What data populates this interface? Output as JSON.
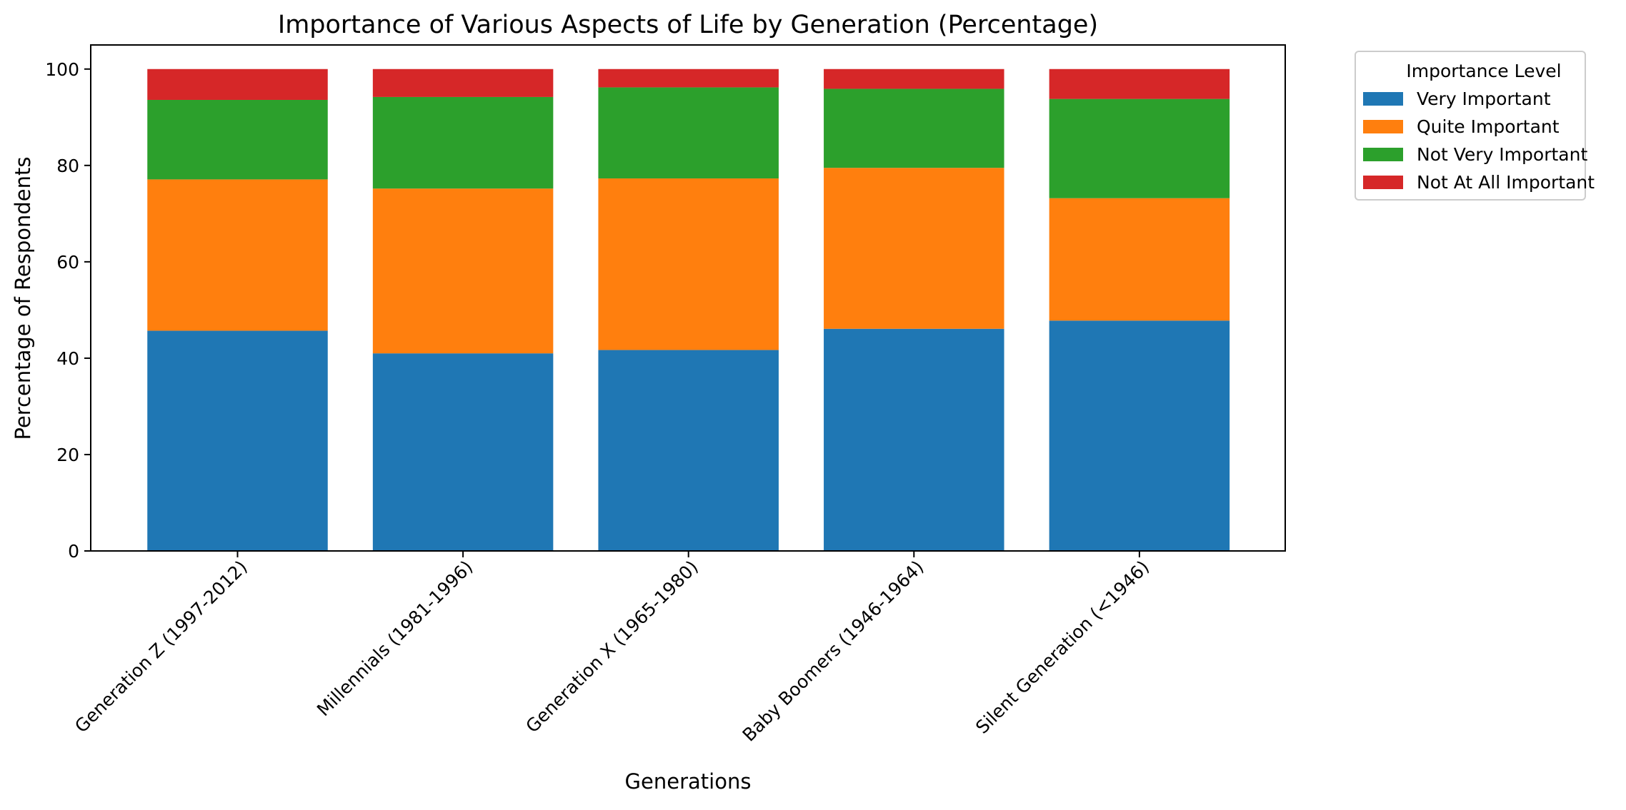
{
  "chart_data": {
    "type": "bar",
    "stacked": true,
    "title": "Importance of Various Aspects of Life by Generation (Percentage)",
    "xlabel": "Generations",
    "ylabel": "Percentage of Respondents",
    "categories": [
      "Generation Z (1997-2012)",
      "Millennials (1981-1996)",
      "Generation X (1965-1980)",
      "Baby Boomers (1946-1964)",
      "Silent Generation (<1946)"
    ],
    "series": [
      {
        "name": "Very Important",
        "color": "#1f77b4",
        "values": [
          45.7,
          41.0,
          41.7,
          46.1,
          47.8
        ]
      },
      {
        "name": "Quite Important",
        "color": "#ff7f0e",
        "values": [
          31.4,
          34.2,
          35.6,
          33.4,
          25.4
        ]
      },
      {
        "name": "Not Very Important",
        "color": "#2ca02c",
        "values": [
          16.5,
          19.0,
          18.9,
          16.4,
          20.6
        ]
      },
      {
        "name": "Not At All Important",
        "color": "#d62728",
        "values": [
          6.4,
          5.8,
          3.8,
          4.1,
          6.2
        ]
      }
    ],
    "ylim": [
      0,
      105
    ],
    "yticks": [
      0,
      20,
      40,
      60,
      80,
      100
    ],
    "grid": false,
    "legend": {
      "title": "Importance Level",
      "placement": "outside-top-right"
    },
    "xtick_rotation": "45"
  }
}
